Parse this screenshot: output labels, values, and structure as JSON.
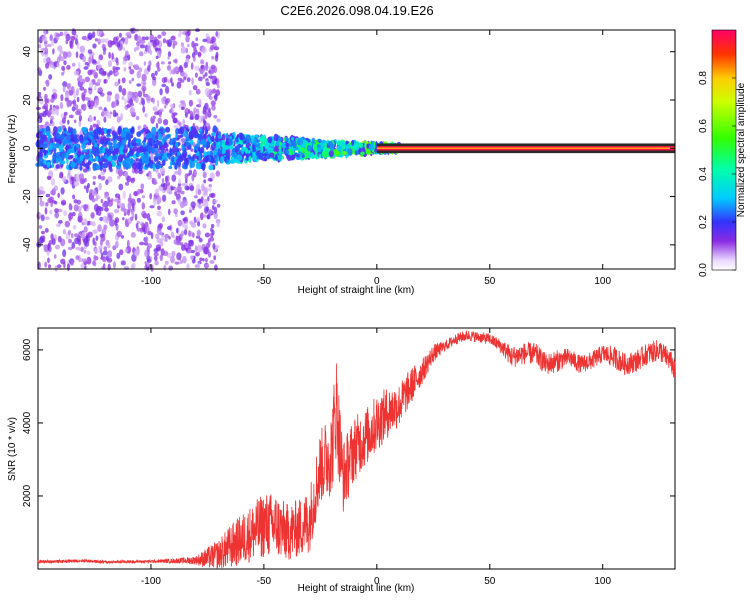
{
  "title": "C2E6.2026.098.04.19.E26",
  "chart_data": [
    {
      "type": "heatmap",
      "xlabel": "Height of straight line (km)",
      "ylabel": "Frequency (Hz)",
      "xlim": [
        -150,
        132
      ],
      "ylim": [
        -50,
        49
      ],
      "xticks": [
        -100,
        -50,
        0,
        50,
        100
      ],
      "yticks": [
        -40,
        -20,
        0,
        20,
        40
      ],
      "colorbar": {
        "label": "Normalized spectral amplitude",
        "range": [
          0,
          1
        ],
        "ticks": [
          0.0,
          0.2,
          0.4,
          0.6,
          0.8
        ],
        "tick_labels": [
          "0.0",
          "0.2",
          "0.4",
          "0.6",
          "0.8"
        ]
      },
      "regions": [
        {
          "x_range": [
            -150,
            -70
          ],
          "y_range": [
            -50,
            49
          ],
          "amplitude": [
            0.05,
            0.15
          ],
          "description_in_data_units": "diffuse scatter"
        },
        {
          "x_range": [
            -150,
            -70
          ],
          "y_range": [
            -8,
            8
          ],
          "amplitude": [
            0.15,
            0.3
          ]
        },
        {
          "x_range": [
            -70,
            10
          ],
          "y_range": [
            -6,
            6
          ],
          "amplitude": [
            0.15,
            0.7
          ]
        },
        {
          "x_range": [
            0,
            132
          ],
          "y_range": [
            -2,
            2
          ],
          "amplitude": [
            0.85,
            1.0
          ]
        }
      ]
    },
    {
      "type": "line",
      "xlabel": "Height of straight line (km)",
      "ylabel": "SNR (10 * v/v)",
      "xlim": [
        -150,
        132
      ],
      "ylim": [
        0,
        6600
      ],
      "xticks": [
        -100,
        -50,
        0,
        50,
        100
      ],
      "yticks": [
        2000,
        4000,
        6000
      ],
      "series": [
        {
          "color": "#ee3333",
          "x": [
            -150,
            -140,
            -130,
            -120,
            -110,
            -100,
            -90,
            -80,
            -75,
            -70,
            -65,
            -60,
            -55,
            -50,
            -45,
            -40,
            -35,
            -30,
            -25,
            -20,
            -18,
            -15,
            -10,
            -5,
            0,
            5,
            10,
            15,
            20,
            25,
            30,
            35,
            40,
            45,
            50,
            55,
            60,
            65,
            70,
            75,
            80,
            85,
            90,
            95,
            100,
            105,
            110,
            115,
            120,
            125,
            130,
            132
          ],
          "y": [
            200,
            210,
            230,
            190,
            200,
            210,
            220,
            240,
            300,
            400,
            600,
            800,
            1000,
            1200,
            1200,
            1000,
            1100,
            1300,
            2800,
            3200,
            4500,
            2500,
            3300,
            3600,
            4000,
            4300,
            4500,
            5000,
            5400,
            5900,
            6100,
            6300,
            6400,
            6350,
            6300,
            6100,
            5800,
            5900,
            5900,
            5600,
            5700,
            5800,
            5600,
            5700,
            5900,
            5800,
            5600,
            5700,
            5900,
            6000,
            5700,
            5400
          ],
          "noise": [
            40,
            40,
            40,
            40,
            40,
            40,
            60,
            120,
            300,
            400,
            600,
            700,
            800,
            900,
            900,
            800,
            800,
            900,
            1000,
            1200,
            1500,
            1000,
            900,
            800,
            800,
            700,
            600,
            500,
            350,
            250,
            150,
            150,
            150,
            150,
            150,
            200,
            300,
            300,
            300,
            300,
            300,
            250,
            250,
            250,
            250,
            300,
            300,
            300,
            300,
            300,
            300,
            300
          ]
        }
      ]
    }
  ]
}
